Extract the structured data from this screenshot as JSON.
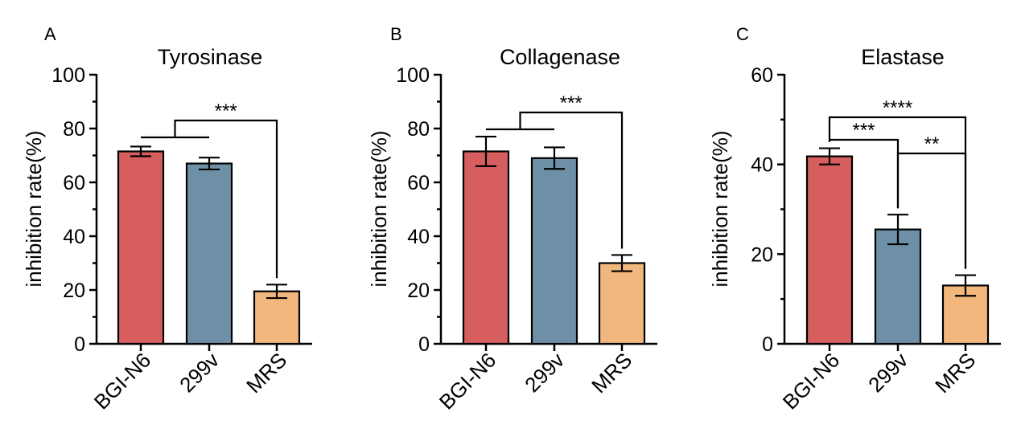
{
  "chart_data": [
    {
      "type": "bar",
      "panel": "A",
      "title": "Tyrosinase",
      "ylabel": "inhibition rate(%)",
      "xlabel": "",
      "categories": [
        "BGI-N6",
        "299v",
        "MRS"
      ],
      "values": [
        71.5,
        67,
        19.5
      ],
      "errors": [
        1.8,
        2.2,
        2.5
      ],
      "colors": [
        "#d75e5e",
        "#6d90a6",
        "#f2b77c"
      ],
      "ylim": [
        0,
        100
      ],
      "yticks": [
        0,
        20,
        40,
        60,
        80,
        100
      ],
      "ytick_labels": [
        "0",
        "20",
        "40",
        "60",
        "80",
        "100"
      ],
      "significance": [
        {
          "from": [
            "BGI-N6",
            "299v"
          ],
          "to": "MRS",
          "label": "***"
        }
      ]
    },
    {
      "type": "bar",
      "panel": "B",
      "title": "Collagenase",
      "ylabel": "inhibition rate(%)",
      "xlabel": "",
      "categories": [
        "BGI-N6",
        "299v",
        "MRS"
      ],
      "values": [
        71.5,
        69,
        30
      ],
      "errors": [
        5.5,
        4,
        3
      ],
      "colors": [
        "#d75e5e",
        "#6d90a6",
        "#f2b77c"
      ],
      "ylim": [
        0,
        100
      ],
      "yticks": [
        0,
        20,
        40,
        60,
        80,
        100
      ],
      "ytick_labels": [
        "0",
        "20",
        "40",
        "60",
        "80",
        "100"
      ],
      "significance": [
        {
          "from": [
            "BGI-N6",
            "299v"
          ],
          "to": "MRS",
          "label": "***"
        }
      ]
    },
    {
      "type": "bar",
      "panel": "C",
      "title": "Elastase",
      "ylabel": "inhibition rate(%)",
      "xlabel": "",
      "categories": [
        "BGI-N6",
        "299v",
        "MRS"
      ],
      "values": [
        41.8,
        25.5,
        13
      ],
      "errors": [
        1.8,
        3.3,
        2.3
      ],
      "colors": [
        "#d75e5e",
        "#6d90a6",
        "#f2b77c"
      ],
      "ylim": [
        0,
        60
      ],
      "yticks": [
        0,
        20,
        40,
        60
      ],
      "ytick_labels": [
        "0",
        "20",
        "40",
        "60"
      ],
      "significance": [
        {
          "from": [
            "BGI-N6"
          ],
          "to": "MRS",
          "label": "****"
        },
        {
          "from": [
            "BGI-N6"
          ],
          "to": "299v",
          "label": "***"
        },
        {
          "from": [
            "299v"
          ],
          "to": "MRS",
          "label": "**"
        }
      ]
    }
  ]
}
